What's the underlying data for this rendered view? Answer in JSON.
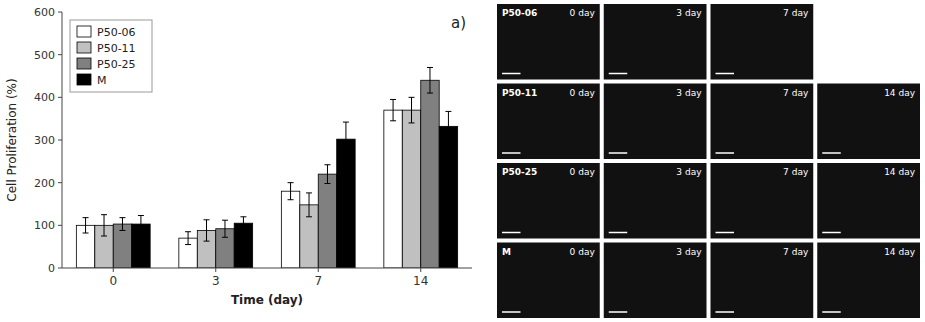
{
  "chart_data": [
    {
      "type": "bar",
      "title": "a)",
      "x_label": "Time (day)",
      "y_label": "Cell Proliferation (%)",
      "categories": [
        "0",
        "3",
        "7",
        "14"
      ],
      "series": [
        {
          "name": "P50-06",
          "color": "#ffffff",
          "values": [
            100,
            70,
            180,
            370
          ],
          "errors": [
            18,
            15,
            20,
            25
          ]
        },
        {
          "name": "P50-11",
          "color": "#c0c0c0",
          "values": [
            100,
            88,
            148,
            370
          ],
          "errors": [
            25,
            25,
            28,
            30
          ]
        },
        {
          "name": "P50-25",
          "color": "#808080",
          "values": [
            103,
            92,
            220,
            440
          ],
          "errors": [
            15,
            20,
            22,
            30
          ]
        },
        {
          "name": "M",
          "color": "#000000",
          "values": [
            103,
            105,
            302,
            332
          ],
          "errors": [
            20,
            15,
            40,
            35
          ]
        }
      ],
      "ylim": [
        0,
        600
      ],
      "yticks": [
        0,
        100,
        200,
        300,
        400,
        500,
        600
      ],
      "grid": false,
      "legend": "upper left"
    },
    {
      "type": "image_grid",
      "series": [
        {
          "name": "P50-06",
          "categories": [
            "0 day",
            "3 day",
            "7 day"
          ]
        },
        {
          "name": "P50-11",
          "categories": [
            "0 day",
            "3 day",
            "7 day",
            "14 day"
          ]
        },
        {
          "name": "P50-25",
          "categories": [
            "0 day",
            "3 day",
            "7 day",
            "14 day"
          ]
        },
        {
          "name": "M",
          "categories": [
            "0 day",
            "3 day",
            "7 day",
            "14 day"
          ]
        }
      ]
    }
  ]
}
